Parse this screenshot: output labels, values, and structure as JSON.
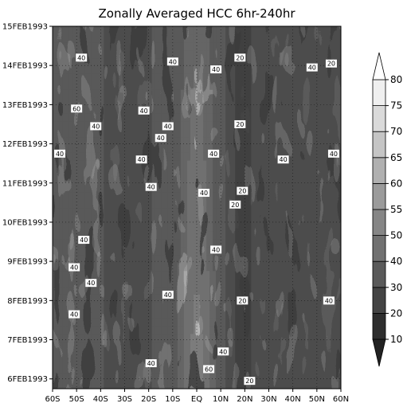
{
  "chart_data": {
    "type": "heatmap",
    "title": "Zonally Averaged HCC 6hr-240hr",
    "xlabel": "",
    "ylabel": "",
    "x_ticks": [
      "60S",
      "50S",
      "40S",
      "30S",
      "20S",
      "10S",
      "EQ",
      "10N",
      "20N",
      "30N",
      "40N",
      "50N",
      "60N"
    ],
    "x_range": [
      -60,
      60
    ],
    "y_ticks": [
      "6FEB1993",
      "7FEB1993",
      "8FEB1993",
      "9FEB1993",
      "10FEB1993",
      "11FEB1993",
      "12FEB1993",
      "13FEB1993",
      "14FEB1993",
      "15FEB1993"
    ],
    "y_range_days": [
      5.75,
      15.0
    ],
    "colorbar": {
      "levels": [
        10,
        20,
        30,
        40,
        50,
        55,
        60,
        65,
        70,
        75,
        80
      ],
      "colors": [
        "#2e2e2e",
        "#444444",
        "#5a5a5a",
        "#717171",
        "#868686",
        "#9b9b9b",
        "#b0b0b0",
        "#c5c5c5",
        "#dadada",
        "#efefef"
      ],
      "extend": "both"
    },
    "grid": true,
    "contour_labels": [
      {
        "lat": -48,
        "day": 14.2,
        "text": "40"
      },
      {
        "lat": 18,
        "day": 14.2,
        "text": "20"
      },
      {
        "lat": -10,
        "day": 14.1,
        "text": "40"
      },
      {
        "lat": 8,
        "day": 13.9,
        "text": "40"
      },
      {
        "lat": 48,
        "day": 13.95,
        "text": "40"
      },
      {
        "lat": 56,
        "day": 14.05,
        "text": "20"
      },
      {
        "lat": -50,
        "day": 12.9,
        "text": "60"
      },
      {
        "lat": -42,
        "day": 12.45,
        "text": "40"
      },
      {
        "lat": -22,
        "day": 12.85,
        "text": "40"
      },
      {
        "lat": -12,
        "day": 12.45,
        "text": "40"
      },
      {
        "lat": 18,
        "day": 12.5,
        "text": "20"
      },
      {
        "lat": -15,
        "day": 12.15,
        "text": "40"
      },
      {
        "lat": -57,
        "day": 11.75,
        "text": "40"
      },
      {
        "lat": -23,
        "day": 11.6,
        "text": "40"
      },
      {
        "lat": 7,
        "day": 11.75,
        "text": "40"
      },
      {
        "lat": 36,
        "day": 11.6,
        "text": "40"
      },
      {
        "lat": 57,
        "day": 11.75,
        "text": "40"
      },
      {
        "lat": -19,
        "day": 10.9,
        "text": "40"
      },
      {
        "lat": 3,
        "day": 10.75,
        "text": "40"
      },
      {
        "lat": 19,
        "day": 10.8,
        "text": "20"
      },
      {
        "lat": 16,
        "day": 10.45,
        "text": "20"
      },
      {
        "lat": -47,
        "day": 9.55,
        "text": "40"
      },
      {
        "lat": 8,
        "day": 9.3,
        "text": "40"
      },
      {
        "lat": -51,
        "day": 8.85,
        "text": "40"
      },
      {
        "lat": -44,
        "day": 8.45,
        "text": "40"
      },
      {
        "lat": -12,
        "day": 8.15,
        "text": "40"
      },
      {
        "lat": 19,
        "day": 8.0,
        "text": "20"
      },
      {
        "lat": 55,
        "day": 8.0,
        "text": "40"
      },
      {
        "lat": -51,
        "day": 7.65,
        "text": "40"
      },
      {
        "lat": -19,
        "day": 6.4,
        "text": "40"
      },
      {
        "lat": 11,
        "day": 6.7,
        "text": "40"
      },
      {
        "lat": 5,
        "day": 6.25,
        "text": "60"
      },
      {
        "lat": 22,
        "day": 5.95,
        "text": "20"
      }
    ]
  }
}
